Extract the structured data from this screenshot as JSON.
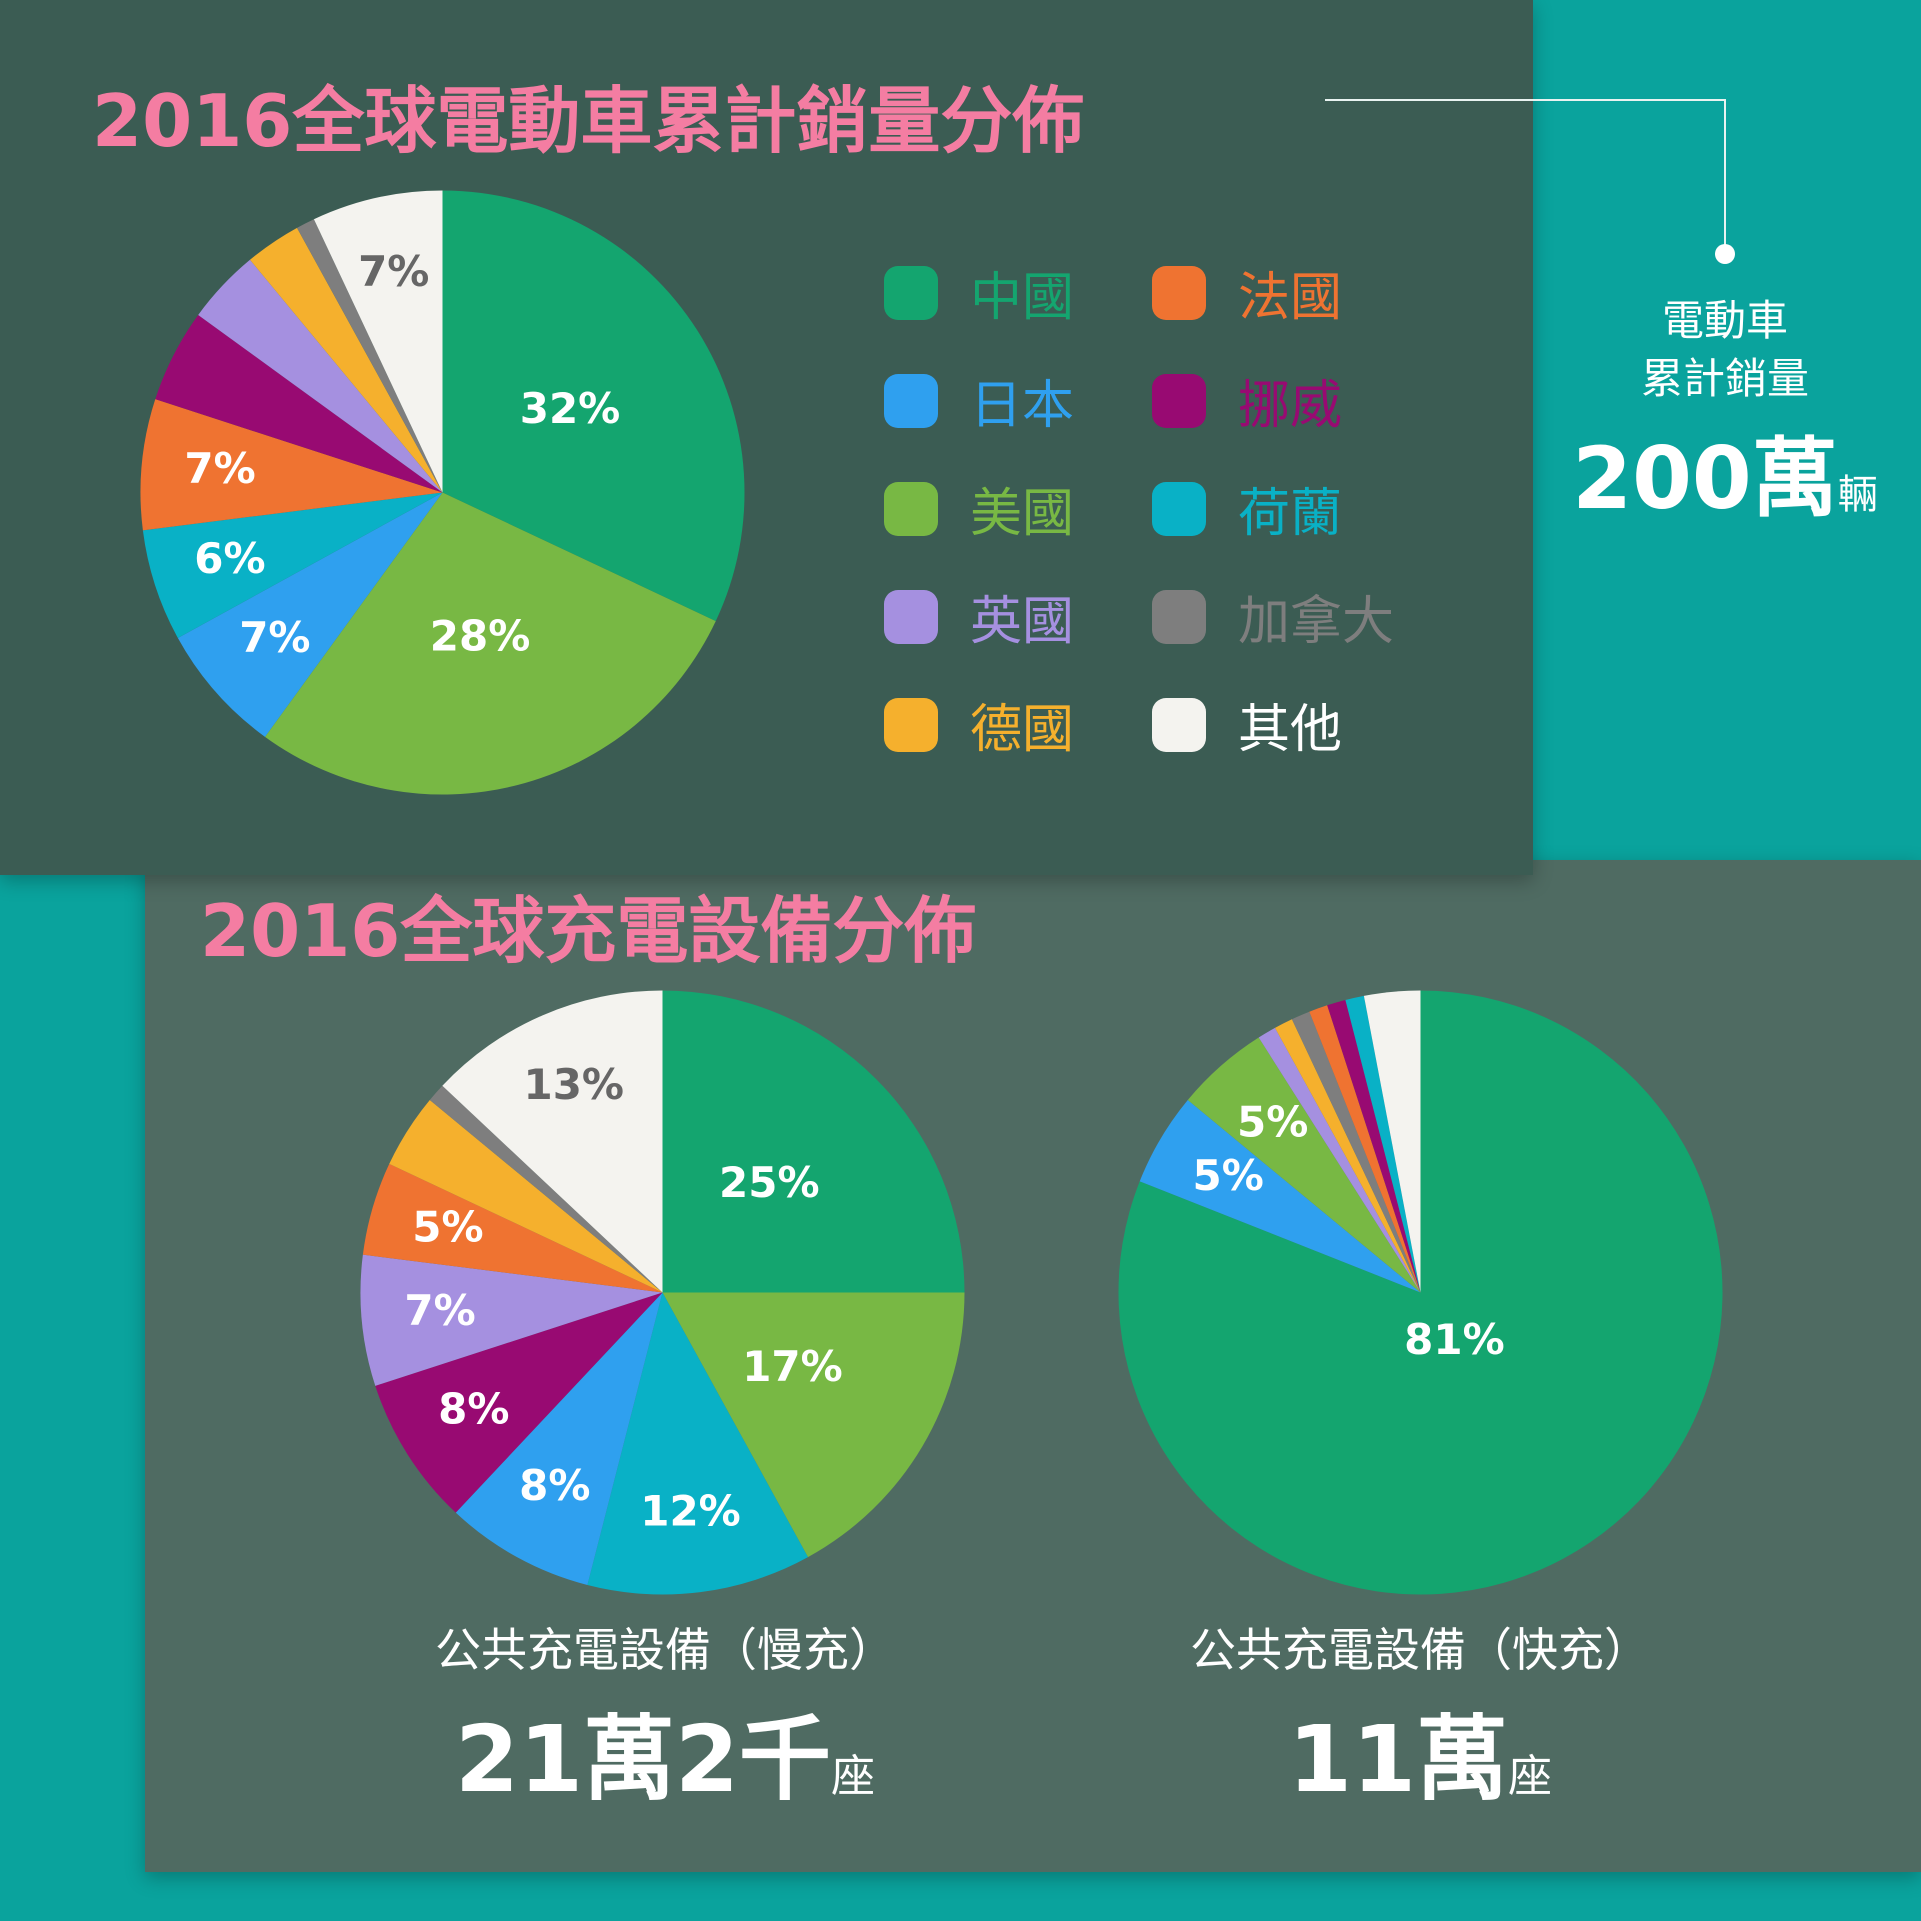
{
  "chart_data": [
    {
      "type": "pie",
      "title": "2016全球電動車累計銷量分佈",
      "categories": [
        "中國",
        "美國",
        "日本",
        "荷蘭",
        "法國",
        "挪威",
        "英國",
        "德國",
        "加拿大",
        "其他"
      ],
      "values": [
        32,
        28,
        7,
        6,
        7,
        5,
        4,
        3,
        1,
        7
      ],
      "labels": [
        "32%",
        "28%",
        "7%",
        "6%",
        "7%",
        "",
        "",
        "",
        "",
        "7%"
      ],
      "total_label": "電動車累計銷量",
      "total_label_lines": [
        "電動車",
        "累計銷量"
      ],
      "total_number": "200萬",
      "total_unit": "輛"
    },
    {
      "type": "pie",
      "title": "2016全球充電設備分佈",
      "name": "公共充電設備（慢充）",
      "categories": [
        "中國",
        "美國",
        "荷蘭",
        "日本",
        "挪威",
        "英國",
        "法國",
        "德國",
        "加拿大",
        "其他"
      ],
      "values": [
        25,
        17,
        12,
        8,
        8,
        7,
        5,
        4,
        1,
        13
      ],
      "labels": [
        "25%",
        "17%",
        "12%",
        "8%",
        "8%",
        "7%",
        "5%",
        "",
        "",
        "13%"
      ],
      "total_number": "21萬2千",
      "total_unit": "座"
    },
    {
      "type": "pie",
      "name": "公共充電設備（快充）",
      "categories": [
        "中國",
        "日本",
        "美國",
        "英國",
        "德國",
        "加拿大",
        "法國",
        "挪威",
        "荷蘭",
        "其他"
      ],
      "values": [
        81,
        5,
        5,
        1,
        1,
        1,
        1,
        1,
        1,
        3
      ],
      "labels": [
        "81%",
        "5%",
        "5%",
        "",
        "",
        "",
        "",
        "",
        "",
        ""
      ],
      "total_number": "11萬",
      "total_unit": "座"
    }
  ],
  "legend": [
    {
      "label": "中國",
      "color": "#14a56f"
    },
    {
      "label": "法國",
      "color": "#ef7331"
    },
    {
      "label": "日本",
      "color": "#2fa0ef"
    },
    {
      "label": "挪威",
      "color": "#980a72"
    },
    {
      "label": "美國",
      "color": "#78b844"
    },
    {
      "label": "荷蘭",
      "color": "#09b1c6"
    },
    {
      "label": "英國",
      "color": "#a590e0"
    },
    {
      "label": "加拿大",
      "color": "#7e7e7e"
    },
    {
      "label": "德國",
      "color": "#f5b02d"
    },
    {
      "label": "其他",
      "color": "#f4f3ef"
    }
  ],
  "colors": {
    "中國": "#14a56f",
    "美國": "#78b844",
    "日本": "#2fa0ef",
    "荷蘭": "#09b1c6",
    "法國": "#ef7331",
    "挪威": "#980a72",
    "英國": "#a590e0",
    "德國": "#f5b02d",
    "加拿大": "#7e7e7e",
    "其他": "#f4f3ef",
    "background": "#0aa39d",
    "panel_top": "#3b5c53",
    "panel_bottom": "#4f6b62",
    "title": "#f47da2"
  }
}
